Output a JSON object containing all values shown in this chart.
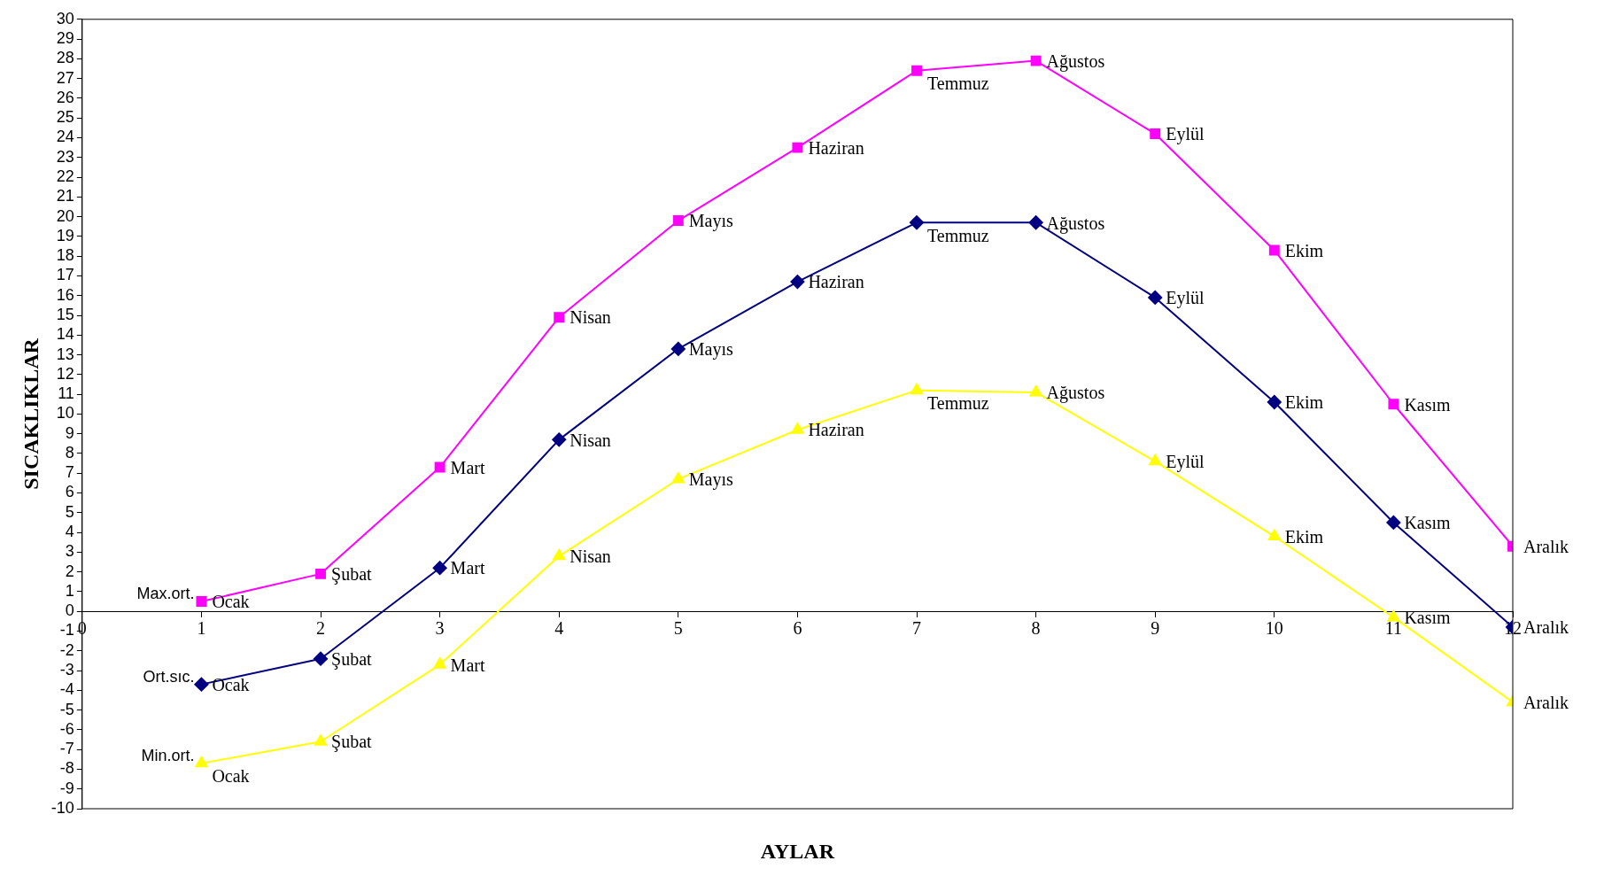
{
  "chart_data": {
    "type": "line",
    "xlabel": "AYLAR",
    "ylabel": "SICAKLIKLAR",
    "xlim": [
      0,
      12
    ],
    "xticks": [
      0,
      1,
      2,
      3,
      4,
      5,
      6,
      7,
      8,
      9,
      10,
      11,
      12
    ],
    "ylim": [
      -10,
      30
    ],
    "yticks": [
      -10,
      -9,
      -8,
      -7,
      -6,
      -5,
      -4,
      -3,
      -2,
      -1,
      0,
      1,
      2,
      3,
      4,
      5,
      6,
      7,
      8,
      9,
      10,
      11,
      12,
      13,
      14,
      15,
      16,
      17,
      18,
      19,
      20,
      21,
      22,
      23,
      24,
      25,
      26,
      27,
      28,
      29,
      30
    ],
    "grid": false,
    "legend": false,
    "x": [
      1,
      2,
      3,
      4,
      5,
      6,
      7,
      8,
      9,
      10,
      11,
      12
    ],
    "series": [
      {
        "name": "Max.ort.",
        "color": "#ff00ff",
        "marker": "square",
        "values": [
          0.5,
          1.9,
          7.3,
          14.9,
          19.8,
          23.5,
          27.4,
          27.9,
          24.2,
          18.3,
          10.5,
          3.3
        ],
        "value_labels": [
          "Ocak",
          "Şubat",
          "Mart",
          "Nisan",
          "Mayıs",
          "Haziran",
          "Temmuz",
          "Ağustos",
          "Eylül",
          "Ekim",
          "Kasım",
          "Aralık"
        ]
      },
      {
        "name": "Ort.sıc.",
        "color": "#000080",
        "marker": "diamond",
        "values": [
          -3.7,
          -2.4,
          2.2,
          8.7,
          13.3,
          16.7,
          19.7,
          19.7,
          15.9,
          10.6,
          4.5,
          -0.8
        ],
        "value_labels": [
          "Ocak",
          "Şubat",
          "Mart",
          "Nisan",
          "Mayıs",
          "Haziran",
          "Temmuz",
          "Ağustos",
          "Eylül",
          "Ekim",
          "Kasım",
          "Aralık"
        ]
      },
      {
        "name": "Min.ort.",
        "color": "#ffff00",
        "marker": "triangle",
        "values": [
          -7.7,
          -6.6,
          -2.7,
          2.8,
          6.7,
          9.2,
          11.2,
          11.1,
          7.6,
          3.8,
          -0.3,
          -4.6
        ],
        "value_labels": [
          "Ocak",
          "Şubat",
          "Mart",
          "Nisan",
          "Mayıs",
          "Haziran",
          "Temmuz",
          "Ağustos",
          "Eylül",
          "Ekim",
          "Kasım",
          "Aralık"
        ]
      }
    ]
  }
}
